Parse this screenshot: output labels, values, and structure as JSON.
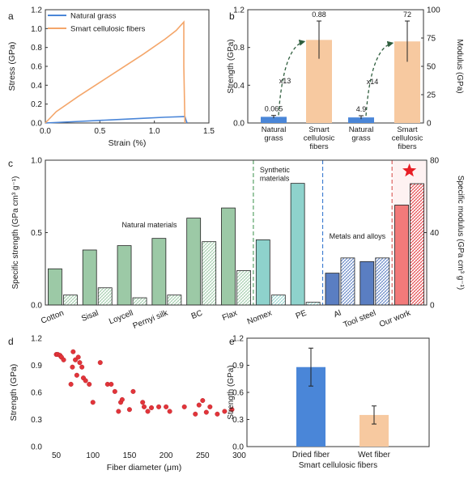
{
  "panel_labels": {
    "a": "a",
    "b": "b",
    "c": "c",
    "d": "d",
    "e": "e"
  },
  "colors": {
    "blue": "#4a86d8",
    "orange": "#f4a66a",
    "orange_bar": "#f7c9a0",
    "green": "#9cc9a6",
    "cyan": "#8ed2cc",
    "navy": "#5a7ec2",
    "red": "#e2343a",
    "star": "#e81e25",
    "dash_green": "#4a9a5a",
    "dash_blue": "#3a7ad0",
    "dash_red": "#d9534f",
    "arrow": "#2f5e3e"
  },
  "chart_data": [
    {
      "panel": "a",
      "type": "line",
      "xlabel": "Strain (%)",
      "ylabel": "Stress (GPa)",
      "xlim": [
        0,
        1.5
      ],
      "ylim": [
        0,
        1.2
      ],
      "xticks": [
        "0.0",
        "0.5",
        "1.0",
        "1.5"
      ],
      "yticks": [
        "0.0",
        "0.2",
        "0.4",
        "0.6",
        "0.8",
        "1.0",
        "1.2"
      ],
      "legend_position": "top-left",
      "series": [
        {
          "name": "Natural grass",
          "color": "#4a86d8",
          "x": [
            0,
            0.3,
            0.6,
            0.9,
            1.1,
            1.28,
            1.29,
            1.3
          ],
          "y": [
            0,
            0.016,
            0.033,
            0.05,
            0.061,
            0.068,
            0.03,
            0
          ]
        },
        {
          "name": "Smart cellulosic fibers",
          "color": "#f4a66a",
          "x": [
            0,
            0.1,
            0.3,
            0.5,
            0.7,
            0.9,
            1.1,
            1.2,
            1.27,
            1.27,
            1.28
          ],
          "y": [
            0,
            0.12,
            0.28,
            0.43,
            0.58,
            0.73,
            0.89,
            0.98,
            1.07,
            0.6,
            0
          ]
        }
      ]
    },
    {
      "panel": "b",
      "type": "bar",
      "categories": [
        [
          "Natural",
          "grass"
        ],
        [
          "Smart",
          "cellulosic",
          "fibers"
        ],
        [
          "Natural",
          "grass"
        ],
        [
          "Smart",
          "cellulosic",
          "fibers"
        ]
      ],
      "ylabel_left": "Strength (GPa)",
      "ylabel_right": "Modulus (GPa)",
      "ylim_left": [
        0,
        1.2
      ],
      "ylim_right": [
        0,
        100
      ],
      "yticks_left": [
        "0.0",
        "0.4",
        "0.8",
        "1.2"
      ],
      "yticks_right": [
        "0",
        "25",
        "50",
        "75",
        "100"
      ],
      "bars": [
        {
          "axis": "left",
          "value": 0.065,
          "error": 0.015,
          "label": "0.065",
          "color": "#4a86d8"
        },
        {
          "axis": "left",
          "value": 0.88,
          "error": 0.2,
          "label": "0.88",
          "color": "#f7c9a0"
        },
        {
          "axis": "right",
          "value": 4.9,
          "error": 1.5,
          "label": "4.9",
          "color": "#4a86d8"
        },
        {
          "axis": "right",
          "value": 72,
          "error": 18,
          "label": "72",
          "color": "#f7c9a0"
        }
      ],
      "annotations": [
        "x13",
        "x14"
      ]
    },
    {
      "panel": "c",
      "type": "bar",
      "categories": [
        "Cotton",
        "Sisal",
        "Loycell",
        "Pernyi silk",
        "BC",
        "Flax",
        "Nomex",
        "PE",
        "Al",
        "Tool steel",
        "Our work"
      ],
      "ylabel_left": "Specific strength (GPa cm³ g⁻¹)",
      "ylabel_right": "Specific modulus (GPa cm³ g⁻¹)",
      "ylim_left": [
        0,
        1.0
      ],
      "ylim_right": [
        0,
        80
      ],
      "yticks_left": [
        "0.0",
        "0.5",
        "1.0"
      ],
      "yticks_right": [
        "0",
        "40",
        "80"
      ],
      "strength": [
        0.25,
        0.38,
        0.41,
        0.46,
        0.6,
        0.67,
        0.45,
        0.84,
        0.22,
        0.3,
        0.69
      ],
      "modulus": [
        5.5,
        9.5,
        4,
        5.5,
        35,
        19,
        5.5,
        1.5,
        26,
        26,
        67
      ],
      "groups": [
        "Natural materials",
        "Synthetic\nmaterials",
        "Metals and alloys"
      ]
    },
    {
      "panel": "d",
      "type": "scatter",
      "xlabel": "Fiber diameter (μm)",
      "ylabel": "Strength (GPa)",
      "xlim": [
        35,
        305
      ],
      "ylim": [
        0,
        1.2
      ],
      "xticks": [
        "50",
        "100",
        "150",
        "200",
        "250",
        "300"
      ],
      "yticks": [
        "0.0",
        "0.3",
        "0.6",
        "0.9",
        "1.2"
      ],
      "x": [
        50,
        52,
        55,
        57,
        60,
        70,
        72,
        73,
        76,
        78,
        80,
        82,
        85,
        87,
        90,
        95,
        100,
        110,
        120,
        125,
        130,
        135,
        138,
        140,
        150,
        155,
        168,
        170,
        175,
        180,
        190,
        200,
        205,
        225,
        240,
        245,
        250,
        255,
        260,
        270,
        280,
        290
      ],
      "y": [
        1.02,
        1.02,
        1.01,
        0.99,
        0.96,
        0.69,
        0.88,
        1.05,
        0.96,
        0.79,
        0.99,
        0.93,
        0.88,
        0.76,
        0.73,
        0.69,
        0.49,
        0.93,
        0.69,
        0.69,
        0.61,
        0.39,
        0.49,
        0.52,
        0.41,
        0.61,
        0.49,
        0.44,
        0.39,
        0.43,
        0.44,
        0.44,
        0.39,
        0.44,
        0.36,
        0.46,
        0.51,
        0.38,
        0.44,
        0.36,
        0.39,
        0.41
      ]
    },
    {
      "panel": "e",
      "type": "bar",
      "categories": [
        "Dried fiber",
        "Wet fiber"
      ],
      "xlabel": "Smart cellulosic fibers",
      "ylabel": "Strength (GPa)",
      "ylim": [
        0,
        1.2
      ],
      "yticks": [
        "0.0",
        "0.3",
        "0.6",
        "0.9",
        "1.2"
      ],
      "values": [
        0.88,
        0.35
      ],
      "errors": [
        0.21,
        0.1
      ],
      "colors": [
        "#4a86d8",
        "#f7c9a0"
      ]
    }
  ]
}
